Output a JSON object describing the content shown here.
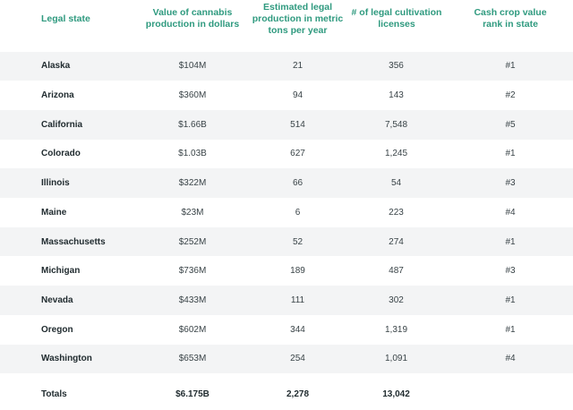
{
  "headers": [
    "Legal state",
    "Value of cannabis production in dollars",
    "Estimated legal production in metric tons per year",
    "# of legal cultivation licenses",
    "Cash crop value rank in state"
  ],
  "rows": [
    [
      "Alaska",
      "$104M",
      "21",
      "356",
      "#1"
    ],
    [
      "Arizona",
      "$360M",
      "94",
      "143",
      "#2"
    ],
    [
      "California",
      "$1.66B",
      "514",
      "7,548",
      "#5"
    ],
    [
      "Colorado",
      "$1.03B",
      "627",
      "1,245",
      "#1"
    ],
    [
      "Illinois",
      "$322M",
      "66",
      "54",
      "#3"
    ],
    [
      "Maine",
      "$23M",
      "6",
      "223",
      "#4"
    ],
    [
      "Massachusetts",
      "$252M",
      "52",
      "274",
      "#1"
    ],
    [
      "Michigan",
      "$736M",
      "189",
      "487",
      "#3"
    ],
    [
      "Nevada",
      "$433M",
      "111",
      "302",
      "#1"
    ],
    [
      "Oregon",
      "$602M",
      "344",
      "1,319",
      "#1"
    ],
    [
      "Washington",
      "$653M",
      "254",
      "1,091",
      "#4"
    ]
  ],
  "totals": [
    "Totals",
    "$6.175B",
    "2,278",
    "13,042",
    ""
  ]
}
